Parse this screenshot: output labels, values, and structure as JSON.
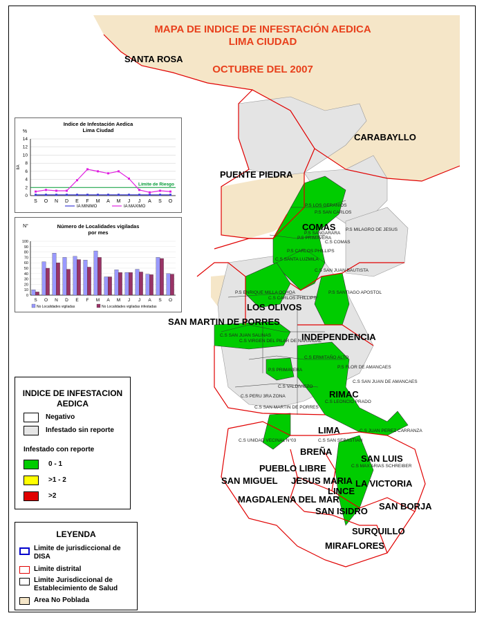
{
  "title": {
    "line1": "MAPA DE INDICE DE INFESTACIÓN AEDICA",
    "line2": "LIMA CIUDAD",
    "line3": "OCTUBRE DEL 2007"
  },
  "districts": {
    "santa_rosa": "SANTA ROSA",
    "carabayllo": "CARABAYLLO",
    "puente_piedra": "PUENTE PIEDRA",
    "comas": "COMAS",
    "los_olivos": "LOS OLIVOS",
    "san_martin": "SAN MARTIN DE PORRES",
    "independencia": "INDEPENDENCIA",
    "rimac": "RIMAC",
    "lima": "LIMA",
    "brena": "BREÑA",
    "pueblo_libre": "PUEBLO LIBRE",
    "san_luis": "SAN LUIS",
    "san_miguel": "SAN MIGUEL",
    "jesus_maria": "JESUS MARIA",
    "la_victoria": "LA VICTORIA",
    "lince": "LINCE",
    "magdalena": "MAGDALENA DEL MAR",
    "san_isidro": "SAN ISIDRO",
    "san_borja": "SAN BORJA",
    "surquillo": "SURQUILLO",
    "miraflores": "MIRAFLORES"
  },
  "facilities": {
    "f1": "P.S LOS GERANIOS",
    "f2": "P.S SAN CARLOS",
    "f3": "P.S SANGARARA",
    "f4": "P.S MILAGRO DE JESUS",
    "f5": "P.S PRIMAVERA",
    "f6": "C.S COMAS",
    "f7": "P.S CARLOS PHILLIPS",
    "f8": "C.S SANTA LUZMILA",
    "f9": "C.S SAN JUAN BAUTISTA",
    "f10": "P.S SANTIAGO APOSTOL",
    "f11": "P.S ENRIQUE MILLA OCHOA",
    "f12": "C.S CARLOS PHILLIPS",
    "f13": "C.S SAN JUAN SALINAS",
    "f14": "C.S VIRGEN DEL PILAR DE NARANJAL",
    "f15": "C.S ERMITAÑO ALTO",
    "f16": "P.S FLOR DE AMANCAES",
    "f17": "P.S PRIMAVERA",
    "f18": "C.S SAN JUAN DE AMANCAES",
    "f19": "C.S VALDIVIEZO",
    "f20": "C.S PERU 3RA ZONA",
    "f21": "C.S SAN MARTIN DE PORRES",
    "f22": "C.S UNIDAD VECINAL N°03",
    "f23": "C.S JUAN PEREZ CARRANZA",
    "f24": "C.S SAN SEBASTIAN",
    "f25": "C.S MAX ARIAS SCHREIBER",
    "f26": "C.S LEONCIO PRADO"
  },
  "chart1": {
    "title_line1": "Indice de Infestación Aedica",
    "title_line2": "Lima Ciudad",
    "unit": "%",
    "ylabel": "IIA",
    "risk_label": "Límite de Riesgo",
    "legend_min": "IA MINIMO",
    "legend_max": "IA MAXIMO",
    "yticks": [
      "0",
      "2",
      "4",
      "6",
      "8",
      "10",
      "12",
      "14"
    ]
  },
  "chart2": {
    "title_line1": "Número de Localidades vigiladas",
    "title_line2": "por mes",
    "unit": "N°",
    "legend_a": "No Localidades vigiladas",
    "legend_b": "No Localidades vigiladas infestadas",
    "yticks": [
      "0",
      "10",
      "20",
      "30",
      "40",
      "50",
      "60",
      "70",
      "80",
      "90",
      "100"
    ]
  },
  "chart_data": [
    {
      "type": "line",
      "title": "Indice de Infestación Aedica Lima Ciudad",
      "xlabel": "",
      "ylabel": "IIA",
      "categories": [
        "S",
        "O",
        "N",
        "D",
        "E",
        "F",
        "M",
        "A",
        "M",
        "J",
        "J",
        "A",
        "S",
        "O"
      ],
      "ylim": [
        0,
        14
      ],
      "risk_limit": 2,
      "series": [
        {
          "name": "IA MINIMO",
          "color": "#3b3bd6",
          "values": [
            0.2,
            0.2,
            0.2,
            0.2,
            0.2,
            0.2,
            0.2,
            0.2,
            0.2,
            0.2,
            0.2,
            0.2,
            0.2,
            0.2
          ]
        },
        {
          "name": "IA MAXIMO",
          "color": "#e020e0",
          "values": [
            1.0,
            1.4,
            1.2,
            1.2,
            3.8,
            6.5,
            6.0,
            5.5,
            6.0,
            4.2,
            1.4,
            0.8,
            1.2,
            1.0
          ]
        }
      ]
    },
    {
      "type": "bar",
      "title": "Número de Localidades vigiladas por mes",
      "categories": [
        "S",
        "O",
        "N",
        "D",
        "E",
        "F",
        "M",
        "A",
        "M",
        "J",
        "J",
        "A",
        "S",
        "O"
      ],
      "ylim": [
        0,
        100
      ],
      "series": [
        {
          "name": "No Localidades vigiladas",
          "color": "#9999ff",
          "values": [
            10,
            62,
            78,
            70,
            72,
            65,
            82,
            34,
            47,
            42,
            48,
            39,
            70,
            40
          ]
        },
        {
          "name": "No Localidades vigiladas infestadas",
          "color": "#993366",
          "values": [
            6,
            50,
            60,
            48,
            66,
            52,
            70,
            34,
            42,
            42,
            43,
            38,
            68,
            39
          ]
        }
      ]
    }
  ],
  "legend1": {
    "heading1": "INDICE DE INFESTACION",
    "heading2": "AEDICA",
    "negativo": "Negativo",
    "sin_reporte": "Infestado sin reporte",
    "con_reporte": "Infestado con reporte",
    "r1": "0 - 1",
    "r2": ">1 - 2",
    "r3": ">2",
    "colors": {
      "negativo": "#ffffff",
      "sin_reporte": "#e6e6e6",
      "r1": "#00cc00",
      "r2": "#ffff00",
      "r3": "#e00000"
    }
  },
  "legend2": {
    "heading": "LEYENDA",
    "disa_line1": "Limite de jurisdiccional de",
    "disa_line2": "DISA",
    "distrital": "Limite distrital",
    "est_line1": "Limite Jurisdiccional de",
    "est_line2": "Establecimiento de Salud",
    "area": "Area No Poblada",
    "colors": {
      "disa": "#0000cc",
      "distrital": "#e00000",
      "est": "#000000",
      "area": "#f5e6c8"
    }
  }
}
